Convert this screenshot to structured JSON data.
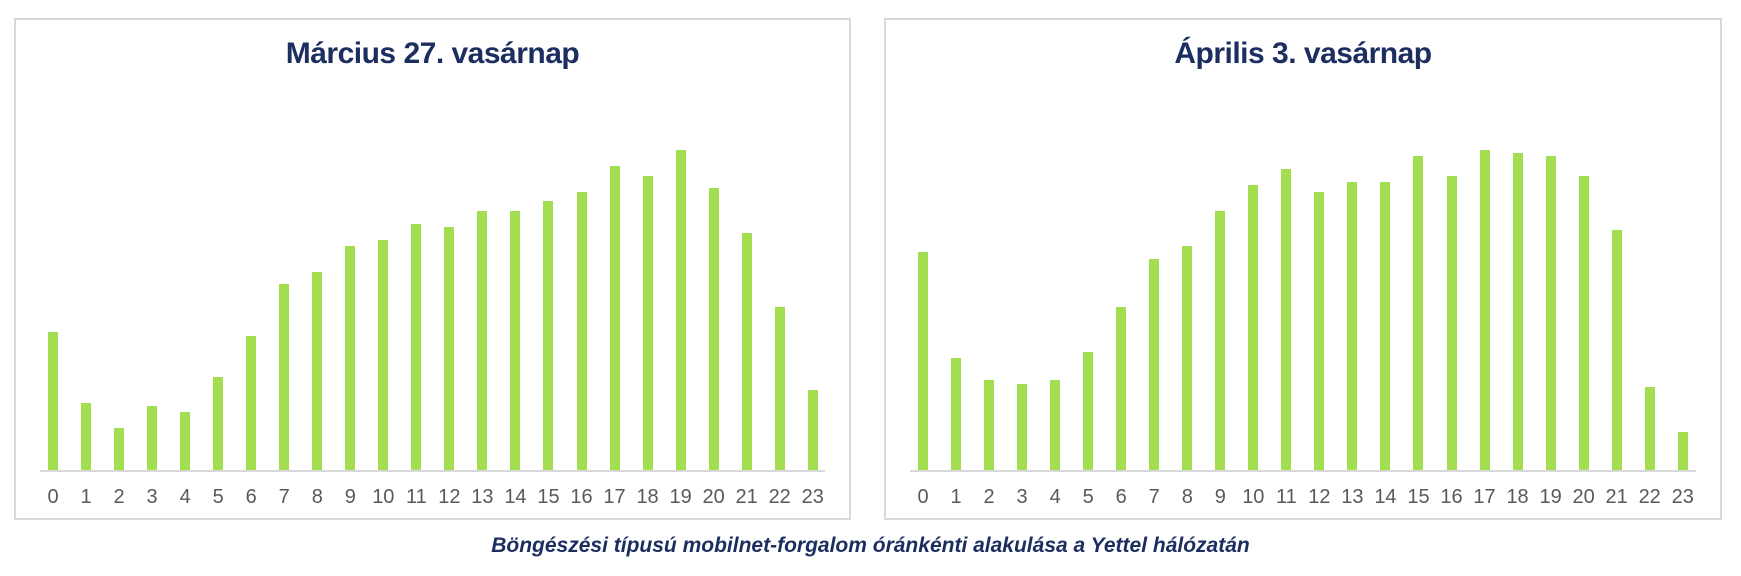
{
  "colors": {
    "bar_green": "#a2de4f",
    "title_navy": "#1c2d5f",
    "axis_label_gray": "#595959",
    "panel_border": "#d9d9d9"
  },
  "caption": {
    "text": "Böngészési típusú mobilnet-forgalom óránkénti alakulása a Yettel hálózatán"
  },
  "chart_data": [
    {
      "type": "bar",
      "title": "Március 27. vasárnap",
      "xlabel": "",
      "ylabel": "",
      "y_axis_visible": false,
      "grid": false,
      "legend": false,
      "units": "relative (no value axis shown, scaled to tallest bar = 100)",
      "ylim": [
        0,
        104
      ],
      "categories": [
        "0",
        "1",
        "2",
        "3",
        "4",
        "5",
        "6",
        "7",
        "8",
        "9",
        "10",
        "11",
        "12",
        "13",
        "14",
        "15",
        "16",
        "17",
        "18",
        "19",
        "20",
        "21",
        "22",
        "23"
      ],
      "values": [
        43,
        21,
        13,
        20,
        18,
        29,
        42,
        58,
        62,
        70,
        72,
        77,
        76,
        81,
        81,
        84,
        87,
        95,
        92,
        100,
        88,
        74,
        51,
        25
      ]
    },
    {
      "type": "bar",
      "title": "Április 3. vasárnap",
      "xlabel": "",
      "ylabel": "",
      "y_axis_visible": false,
      "grid": false,
      "legend": false,
      "units": "relative (no value axis shown, same scale as first chart)",
      "ylim": [
        0,
        104
      ],
      "categories": [
        "0",
        "1",
        "2",
        "3",
        "4",
        "5",
        "6",
        "7",
        "8",
        "9",
        "10",
        "11",
        "12",
        "13",
        "14",
        "15",
        "16",
        "17",
        "18",
        "19",
        "20",
        "21",
        "22",
        "23"
      ],
      "values": [
        68,
        35,
        28,
        27,
        28,
        37,
        51,
        66,
        70,
        81,
        89,
        94,
        87,
        90,
        90,
        98,
        92,
        100,
        99,
        98,
        92,
        75,
        26,
        12
      ]
    }
  ]
}
